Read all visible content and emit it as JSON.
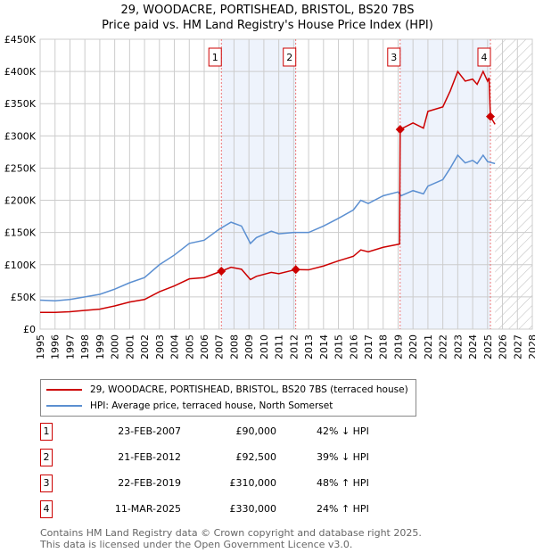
{
  "chart_data": {
    "type": "line",
    "title": "29, WOODACRE, PORTISHEAD, BRISTOL, BS20 7BS",
    "subtitle": "Price paid vs. HM Land Registry's House Price Index (HPI)",
    "xlim": [
      1995,
      2028
    ],
    "ylim": [
      0,
      450000
    ],
    "x_ticks": [
      "1995",
      "1996",
      "1997",
      "1998",
      "1999",
      "2000",
      "2001",
      "2002",
      "2003",
      "2004",
      "2005",
      "2006",
      "2007",
      "2008",
      "2009",
      "2010",
      "2011",
      "2012",
      "2013",
      "2014",
      "2015",
      "2016",
      "2017",
      "2018",
      "2019",
      "2020",
      "2021",
      "2022",
      "2023",
      "2024",
      "2025",
      "2026",
      "2027",
      "2028"
    ],
    "y_ticks": [
      {
        "v": 0,
        "label": "£0"
      },
      {
        "v": 50000,
        "label": "£50K"
      },
      {
        "v": 100000,
        "label": "£100K"
      },
      {
        "v": 150000,
        "label": "£150K"
      },
      {
        "v": 200000,
        "label": "£200K"
      },
      {
        "v": 250000,
        "label": "£250K"
      },
      {
        "v": 300000,
        "label": "£300K"
      },
      {
        "v": 350000,
        "label": "£350K"
      },
      {
        "v": 400000,
        "label": "£400K"
      },
      {
        "v": 450000,
        "label": "£450K"
      }
    ],
    "grid": true,
    "series": [
      {
        "name": "29, WOODACRE, PORTISHEAD, BRISTOL, BS20 7BS (terraced house)",
        "color": "#cc0000",
        "x": [
          1995,
          1996,
          1997,
          1998,
          1999,
          2000,
          2001,
          2002,
          2003,
          2004,
          2005,
          2006,
          2007.15,
          2007.8,
          2008.5,
          2009.1,
          2009.5,
          2010.5,
          2011,
          2012.14,
          2013,
          2014,
          2015,
          2016,
          2016.5,
          2017,
          2018,
          2019.1,
          2019.14,
          2020,
          2020.7,
          2021,
          2022,
          2022.5,
          2023,
          2023.5,
          2024,
          2024.3,
          2024.7,
          2025,
          2025.1,
          2025.19,
          2025.5
        ],
        "y": [
          26000,
          26000,
          27000,
          29000,
          31000,
          36000,
          42000,
          46000,
          58000,
          67000,
          78000,
          80000,
          90000,
          96000,
          93000,
          77000,
          82000,
          88000,
          86000,
          92500,
          92000,
          98000,
          106000,
          113000,
          123000,
          120000,
          127000,
          132000,
          310000,
          320000,
          312000,
          338000,
          345000,
          370000,
          400000,
          385000,
          388000,
          380000,
          400000,
          385000,
          390000,
          330000,
          318000
        ]
      },
      {
        "name": "HPI: Average price, terraced house, North Somerset",
        "color": "#5b8fd1",
        "x": [
          1995,
          1996,
          1997,
          1998,
          1999,
          2000,
          2001,
          2002,
          2003,
          2004,
          2005,
          2006,
          2007,
          2007.8,
          2008.5,
          2009.1,
          2009.5,
          2010.5,
          2011,
          2012,
          2013,
          2014,
          2015,
          2016,
          2016.5,
          2017,
          2018,
          2019,
          2019.2,
          2020,
          2020.7,
          2021,
          2022,
          2022.5,
          2023,
          2023.5,
          2024,
          2024.3,
          2024.7,
          2025,
          2025.5
        ],
        "y": [
          45000,
          44000,
          46000,
          50000,
          54000,
          62000,
          72000,
          80000,
          100000,
          115000,
          133000,
          138000,
          155000,
          166000,
          160000,
          133000,
          142000,
          152000,
          148000,
          150000,
          150000,
          160000,
          172000,
          185000,
          200000,
          195000,
          207000,
          213000,
          207000,
          215000,
          210000,
          222000,
          232000,
          250000,
          270000,
          258000,
          262000,
          257000,
          270000,
          260000,
          257000
        ]
      }
    ],
    "sales": [
      {
        "label": "1",
        "x": 2007.15,
        "date": "23-FEB-2007",
        "price": 90000,
        "price_text": "£90,000",
        "hpi": "42% ↓ HPI"
      },
      {
        "label": "2",
        "x": 2012.14,
        "date": "21-FEB-2012",
        "price": 92500,
        "price_text": "£92,500",
        "hpi": "39% ↓ HPI"
      },
      {
        "label": "3",
        "x": 2019.14,
        "date": "22-FEB-2019",
        "price": 310000,
        "price_text": "£310,000",
        "hpi": "48% ↑ HPI"
      },
      {
        "label": "4",
        "x": 2025.19,
        "date": "11-MAR-2025",
        "price": 330000,
        "price_text": "£330,000",
        "hpi": "24% ↑ HPI"
      }
    ],
    "shaded_ranges": [
      [
        2007.15,
        2012.14
      ],
      [
        2019.14,
        2025.19
      ]
    ],
    "forecast_hatch_from": 2025.5
  },
  "footer": {
    "line1": "Contains HM Land Registry data © Crown copyright and database right 2025.",
    "line2": "This data is licensed under the Open Government Licence v3.0."
  }
}
